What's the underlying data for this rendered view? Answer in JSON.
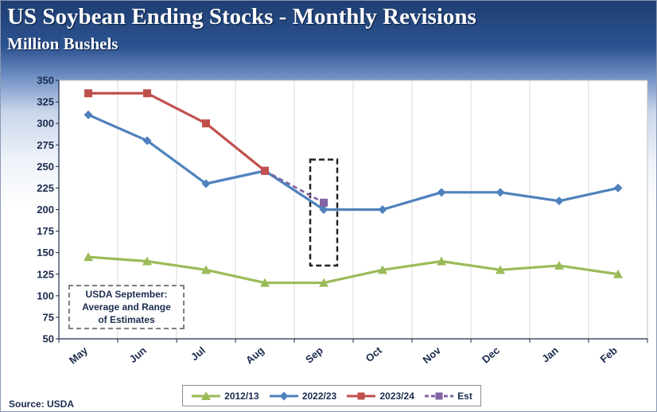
{
  "header": {
    "title": "US Soybean Ending Stocks - Monthly Revisions",
    "subtitle": "Million Bushels"
  },
  "footer": {
    "source": "Source: USDA"
  },
  "annotation": {
    "text": "USDA September: Average and Range of Estimates"
  },
  "colors": {
    "s2012": "#9bbb59",
    "s2022": "#4f81bd",
    "s2023": "#c0504d",
    "est": "#8064a2",
    "grid": "#d9d9d9",
    "axis": "#1b2b4d"
  },
  "chart_data": {
    "type": "line",
    "title": "US Soybean Ending Stocks - Monthly Revisions",
    "subtitle": "Million Bushels",
    "xlabel": "",
    "ylabel": "",
    "categories": [
      "May",
      "Jun",
      "Jul",
      "Aug",
      "Sep",
      "Oct",
      "Nov",
      "Dec",
      "Jan",
      "Feb"
    ],
    "ylim": [
      50,
      350
    ],
    "yticks": [
      50,
      75,
      100,
      125,
      150,
      175,
      200,
      225,
      250,
      275,
      300,
      325,
      350
    ],
    "grid": "vertical",
    "legend_position": "bottom",
    "series": [
      {
        "name": "2012/13",
        "color": "#9bbb59",
        "marker": "triangle",
        "values": [
          145,
          140,
          130,
          115,
          115,
          130,
          140,
          130,
          135,
          125
        ]
      },
      {
        "name": "2022/23",
        "color": "#4f81bd",
        "marker": "diamond",
        "values": [
          310,
          280,
          230,
          245,
          200,
          200,
          220,
          220,
          210,
          225
        ]
      },
      {
        "name": "2023/24",
        "color": "#c0504d",
        "marker": "square",
        "values": [
          335,
          335,
          300,
          245,
          null,
          null,
          null,
          null,
          null,
          null
        ]
      },
      {
        "name": "Est",
        "color": "#8064a2",
        "marker": "square",
        "dashed": true,
        "values": [
          null,
          null,
          null,
          245,
          208,
          null,
          null,
          null,
          null,
          null
        ]
      }
    ],
    "range_box": {
      "category": "Sep",
      "low": 135,
      "high": 258
    }
  }
}
